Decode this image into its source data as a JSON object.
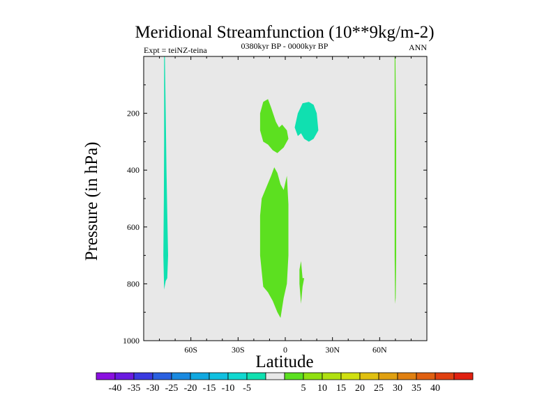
{
  "chart_data": {
    "type": "heatmap",
    "title": "Meridional Streamfunction (10**9kg/m-2)",
    "left_label": "Expt = teiNZ-teina",
    "center_label": "0380kyr BP - 0000kyr BP",
    "right_label": "ANN",
    "xlabel": "Latitude",
    "ylabel": "Pressure (in hPa)",
    "xlim": [
      -90,
      90
    ],
    "ylim": [
      1000,
      0
    ],
    "x_ticks": [
      {
        "value": -60,
        "label": "60S"
      },
      {
        "value": -30,
        "label": "30S"
      },
      {
        "value": 0,
        "label": "0"
      },
      {
        "value": 30,
        "label": "30N"
      },
      {
        "value": 60,
        "label": "60N"
      }
    ],
    "y_ticks": [
      {
        "value": 200,
        "label": "200"
      },
      {
        "value": 400,
        "label": "400"
      },
      {
        "value": 600,
        "label": "600"
      },
      {
        "value": 800,
        "label": "800"
      },
      {
        "value": 1000,
        "label": "1000"
      }
    ],
    "background_color": "#e8e8e8",
    "colorbar": {
      "colors": [
        "#8a10e0",
        "#6a1ae0",
        "#3a3ae0",
        "#2a60e0",
        "#1a8ae0",
        "#10a8e0",
        "#10c0e0",
        "#10d8d0",
        "#10e0b0",
        "#e8e8e8",
        "#5ce020",
        "#90e010",
        "#b0e010",
        "#d0e010",
        "#e0c010",
        "#e0a010",
        "#e08010",
        "#e06010",
        "#e04010",
        "#e02010"
      ],
      "labels": [
        "-40",
        "-35",
        "-30",
        "-25",
        "-20",
        "-15",
        "-10",
        "-5",
        "5",
        "10",
        "15",
        "20",
        "25",
        "30",
        "35",
        "40"
      ]
    },
    "regions": [
      {
        "name": "sh-high-lat-negative-band",
        "value": -5,
        "color": "#10e0b0",
        "points": [
          [
            -77,
            0
          ],
          [
            -76.5,
            0
          ],
          [
            -76,
            200
          ],
          [
            -75.5,
            400
          ],
          [
            -75,
            550
          ],
          [
            -74.5,
            700
          ],
          [
            -75,
            780
          ],
          [
            -76,
            790
          ],
          [
            -77,
            820
          ],
          [
            -77.5,
            700
          ],
          [
            -77.2,
            500
          ],
          [
            -77,
            300
          ],
          [
            -77,
            100
          ]
        ]
      },
      {
        "name": "upper-nh-negative-cell",
        "value": -5,
        "color": "#10e0b0",
        "points": [
          [
            6,
            250
          ],
          [
            8,
            200
          ],
          [
            11,
            165
          ],
          [
            15,
            160
          ],
          [
            18,
            170
          ],
          [
            20,
            200
          ],
          [
            21,
            260
          ],
          [
            18,
            290
          ],
          [
            15,
            300
          ],
          [
            12,
            290
          ],
          [
            10,
            270
          ],
          [
            8,
            280
          ]
        ]
      },
      {
        "name": "upper-sh-positive-cell",
        "value": 5,
        "color": "#5ce020",
        "points": [
          [
            -16,
            200
          ],
          [
            -14,
            160
          ],
          [
            -11,
            150
          ],
          [
            -9,
            180
          ],
          [
            -6,
            230
          ],
          [
            -4,
            250
          ],
          [
            -2,
            240
          ],
          [
            1,
            260
          ],
          [
            2,
            290
          ],
          [
            -1,
            320
          ],
          [
            -3,
            330
          ],
          [
            -5,
            340
          ],
          [
            -8,
            330
          ],
          [
            -11,
            310
          ],
          [
            -14,
            300
          ],
          [
            -16,
            260
          ]
        ]
      },
      {
        "name": "lower-tropical-positive-cell",
        "value": 5,
        "color": "#5ce020",
        "points": [
          [
            -16,
            560
          ],
          [
            -15,
            500
          ],
          [
            -12,
            460
          ],
          [
            -9,
            420
          ],
          [
            -7,
            390
          ],
          [
            -5,
            410
          ],
          [
            -3,
            450
          ],
          [
            -1,
            470
          ],
          [
            1,
            420
          ],
          [
            2,
            520
          ],
          [
            2,
            580
          ],
          [
            2,
            700
          ],
          [
            1,
            800
          ],
          [
            -1,
            850
          ],
          [
            -3,
            920
          ],
          [
            -5,
            900
          ],
          [
            -8,
            860
          ],
          [
            -11,
            830
          ],
          [
            -14,
            810
          ],
          [
            -16,
            700
          ]
        ]
      },
      {
        "name": "small-nh-positive-patch",
        "value": 5,
        "color": "#5ce020",
        "points": [
          [
            9,
            750
          ],
          [
            10,
            720
          ],
          [
            11,
            780
          ],
          [
            12,
            780
          ],
          [
            11,
            810
          ],
          [
            10,
            870
          ],
          [
            9,
            800
          ]
        ]
      },
      {
        "name": "nh-high-lat-positive-band",
        "value": 5,
        "color": "#5ce020",
        "points": [
          [
            69.5,
            0
          ],
          [
            70,
            0
          ],
          [
            70.5,
            300
          ],
          [
            70.5,
            700
          ],
          [
            70.2,
            850
          ],
          [
            69.8,
            870
          ],
          [
            69.5,
            700
          ],
          [
            69.5,
            300
          ]
        ]
      }
    ]
  }
}
